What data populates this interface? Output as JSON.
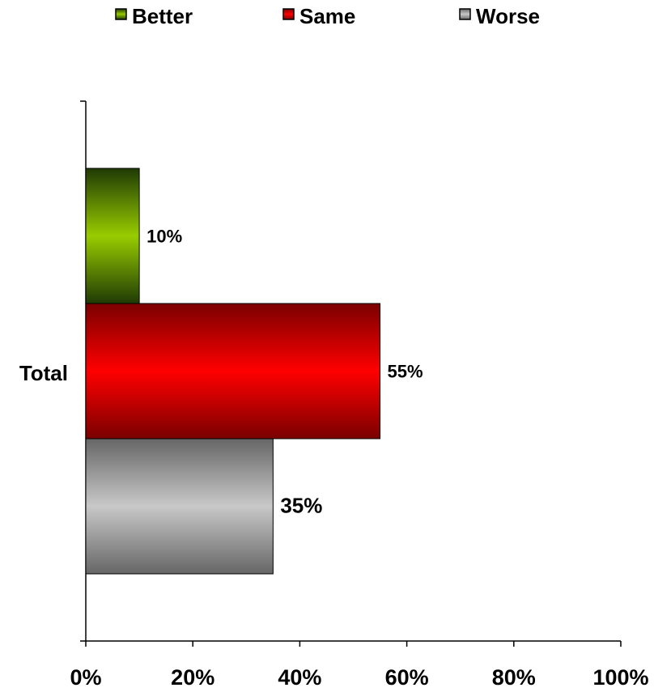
{
  "chart_data": {
    "type": "bar",
    "orientation": "horizontal",
    "categories": [
      "Total"
    ],
    "series": [
      {
        "name": "Better",
        "values": [
          10
        ],
        "label": "10%",
        "color": "#99cc00"
      },
      {
        "name": "Same",
        "values": [
          55
        ],
        "label": "55%",
        "color": "#ff0000"
      },
      {
        "name": "Worse",
        "values": [
          35
        ],
        "label": "35%",
        "color": "#c0c0c0"
      }
    ],
    "xlim": [
      0,
      100
    ],
    "xticks": [
      "0%",
      "20%",
      "40%",
      "60%",
      "80%",
      "100%"
    ],
    "xtick_values": [
      0,
      20,
      40,
      60,
      80,
      100
    ],
    "grid": false,
    "legend_position": "top"
  }
}
